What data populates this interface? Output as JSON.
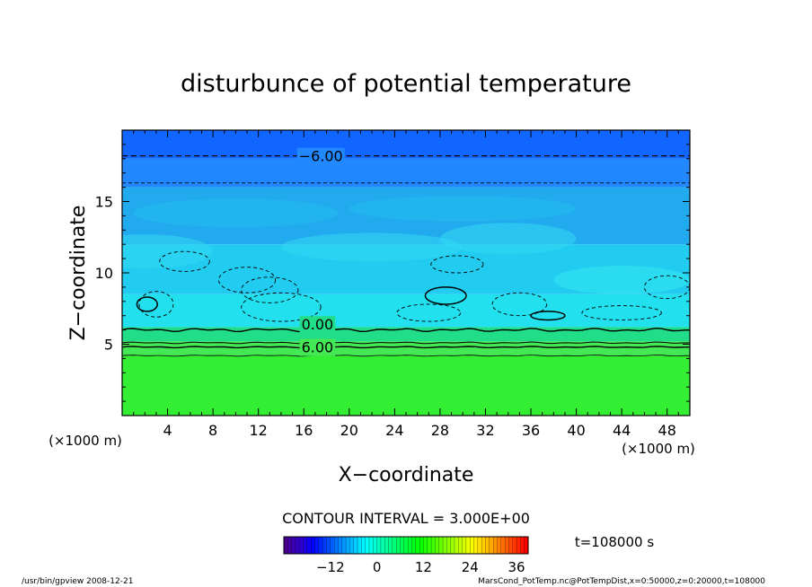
{
  "chart_data": {
    "type": "heatmap",
    "title": "disturbunce of potential temperature",
    "xlabel": "X−coordinate",
    "ylabel": "Z−coordinate",
    "x_unit": "(×1000 m)",
    "x_ticks": [
      4,
      8,
      12,
      16,
      20,
      24,
      28,
      32,
      36,
      40,
      44,
      48
    ],
    "xlim": [
      0,
      50
    ],
    "y_ticks": [
      5,
      10,
      15
    ],
    "ylim": [
      0,
      20
    ],
    "contour_interval_text": "CONTOUR INTERVAL = 3.000E+00",
    "contour_labels": [
      {
        "text": "−6.00",
        "x": 17.5,
        "z": 18.2
      },
      {
        "text": "0.00",
        "x": 17.2,
        "z": 6.4
      },
      {
        "text": "6.00",
        "x": 17.2,
        "z": 4.8
      }
    ],
    "field_bands": [
      {
        "z_range": [
          0,
          4.2
        ],
        "value": 10,
        "color": "#33ee33"
      },
      {
        "z_range": [
          4.2,
          5.2
        ],
        "value": 8,
        "color": "#44e855"
      },
      {
        "z_range": [
          5.2,
          6.2
        ],
        "value": 4,
        "color": "#22dd88"
      },
      {
        "z_range": [
          6.2,
          8.5
        ],
        "value": -1,
        "color": "#22e0ee"
      },
      {
        "z_range": [
          8.5,
          12.0
        ],
        "value": -2,
        "color": "#22ccf0"
      },
      {
        "z_range": [
          12.0,
          16.0
        ],
        "value": -3,
        "color": "#22aaee"
      },
      {
        "z_range": [
          16.0,
          18.0
        ],
        "value": -5,
        "color": "#2288ff"
      },
      {
        "z_range": [
          18.0,
          20.0
        ],
        "value": -7,
        "color": "#1166ff"
      }
    ],
    "colorbar": {
      "ticks": [
        -12,
        0,
        12,
        24,
        36
      ],
      "range": [
        -24,
        39
      ]
    },
    "time_label": "t=108000 s"
  },
  "footer": {
    "left": "/usr/bin/gpview   2008-12-21",
    "right": "MarsCond_PotTemp.nc@PotTempDist,x=0:50000,z=0:20000,t=108000"
  },
  "colors": {
    "axis": "#000000",
    "background": "#ffffff"
  }
}
